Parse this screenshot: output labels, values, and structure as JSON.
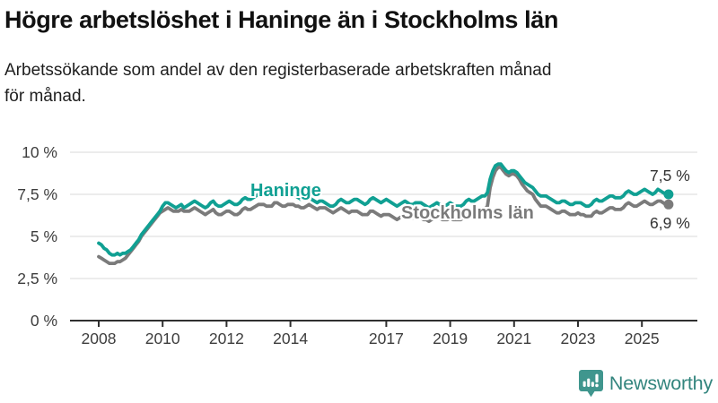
{
  "header": {
    "title": "Högre arbetslöshet i Haninge än i Stockholms län",
    "subtitle_lines": [
      "Arbetssökande som andel av den registerbaserade arbetskraften månad",
      "för månad."
    ]
  },
  "branding": {
    "name": "Newsworthy",
    "icon": "bar-chart-pin-icon",
    "text_color": "#33857E",
    "icon_color": "#40968E"
  },
  "chart_data": {
    "type": "line",
    "title": "Högre arbetslöshet i Haninge än i Stockholms län",
    "subtitle": "Arbetssökande som andel av den registerbaserade arbetskraften månad för månad.",
    "x_start_year": 2008,
    "x_start_month": 1,
    "x_step_months": 1,
    "ylim": [
      0,
      10
    ],
    "grid": true,
    "legend_position": "inline-on-line",
    "yticks": [
      {
        "value": 0,
        "label": "0 %"
      },
      {
        "value": 2.5,
        "label": "2,5 %"
      },
      {
        "value": 5,
        "label": "5 %"
      },
      {
        "value": 7.5,
        "label": "7,5 %"
      },
      {
        "value": 10,
        "label": "10 %"
      }
    ],
    "xticks": [
      {
        "value": 2008,
        "label": "2008"
      },
      {
        "value": 2010,
        "label": "2010"
      },
      {
        "value": 2012,
        "label": "2012"
      },
      {
        "value": 2014,
        "label": "2014"
      },
      {
        "value": 2017,
        "label": "2017"
      },
      {
        "value": 2019,
        "label": "2019"
      },
      {
        "value": 2021,
        "label": "2021"
      },
      {
        "value": 2023,
        "label": "2023"
      },
      {
        "value": 2025,
        "label": "2025"
      }
    ],
    "series": [
      {
        "key": "haninge",
        "name": "Haninge",
        "color": "#10A093",
        "end_label": "7,5 %",
        "last_value": 7.5,
        "values": [
          4.6,
          4.5,
          4.3,
          4.2,
          4.0,
          3.9,
          3.9,
          4.0,
          3.9,
          4.0,
          4.0,
          4.1,
          4.2,
          4.4,
          4.6,
          4.8,
          5.1,
          5.3,
          5.5,
          5.7,
          5.9,
          6.1,
          6.3,
          6.5,
          6.8,
          7.0,
          7.0,
          6.9,
          6.8,
          6.7,
          6.8,
          6.9,
          6.7,
          6.8,
          6.9,
          7.0,
          7.1,
          7.0,
          6.9,
          6.8,
          6.7,
          6.8,
          7.0,
          7.1,
          6.9,
          6.8,
          6.8,
          6.9,
          7.0,
          7.1,
          7.0,
          6.9,
          6.9,
          7.0,
          7.2,
          7.3,
          7.2,
          7.2,
          7.3,
          7.4,
          7.5,
          7.6,
          7.6,
          7.5,
          7.4,
          7.5,
          7.6,
          7.6,
          7.5,
          7.4,
          7.4,
          7.5,
          7.5,
          7.5,
          7.4,
          7.3,
          7.2,
          7.2,
          7.3,
          7.3,
          7.2,
          7.1,
          7.0,
          7.1,
          7.1,
          7.0,
          6.9,
          6.8,
          6.8,
          6.9,
          7.1,
          7.2,
          7.1,
          7.0,
          7.0,
          7.1,
          7.2,
          7.2,
          7.1,
          7.0,
          6.9,
          7.0,
          7.2,
          7.3,
          7.2,
          7.1,
          7.0,
          7.1,
          7.2,
          7.1,
          7.0,
          6.9,
          6.8,
          6.9,
          7.0,
          7.1,
          7.0,
          6.9,
          6.9,
          7.0,
          7.0,
          7.0,
          6.9,
          6.8,
          6.7,
          6.8,
          6.9,
          7.0,
          6.9,
          6.8,
          6.8,
          6.9,
          7.0,
          6.9,
          6.8,
          6.8,
          6.8,
          6.9,
          7.1,
          7.2,
          7.1,
          7.1,
          7.2,
          7.3,
          7.4,
          7.4,
          7.6,
          8.4,
          8.9,
          9.2,
          9.3,
          9.3,
          9.1,
          8.9,
          8.8,
          8.9,
          8.9,
          8.8,
          8.6,
          8.4,
          8.2,
          8.1,
          8.0,
          7.9,
          7.7,
          7.5,
          7.4,
          7.4,
          7.4,
          7.3,
          7.2,
          7.1,
          7.0,
          7.0,
          7.1,
          7.1,
          7.0,
          6.9,
          6.9,
          7.0,
          7.0,
          7.0,
          6.9,
          6.8,
          6.8,
          6.9,
          7.1,
          7.2,
          7.1,
          7.1,
          7.2,
          7.3,
          7.4,
          7.4,
          7.3,
          7.3,
          7.3,
          7.4,
          7.6,
          7.7,
          7.6,
          7.5,
          7.5,
          7.6,
          7.7,
          7.8,
          7.7,
          7.6,
          7.5,
          7.6,
          7.8,
          7.7,
          7.6,
          7.5,
          7.5
        ]
      },
      {
        "key": "stockholms-lan",
        "name": "Stockholms län",
        "color": "#7B7B7B",
        "end_label": "6,9 %",
        "last_value": 6.9,
        "values": [
          3.8,
          3.7,
          3.6,
          3.5,
          3.4,
          3.4,
          3.4,
          3.5,
          3.5,
          3.6,
          3.7,
          3.9,
          4.1,
          4.3,
          4.5,
          4.7,
          5.0,
          5.2,
          5.4,
          5.6,
          5.8,
          6.0,
          6.2,
          6.4,
          6.5,
          6.6,
          6.7,
          6.6,
          6.5,
          6.5,
          6.5,
          6.6,
          6.5,
          6.5,
          6.5,
          6.6,
          6.7,
          6.6,
          6.5,
          6.4,
          6.3,
          6.4,
          6.5,
          6.6,
          6.4,
          6.3,
          6.3,
          6.4,
          6.5,
          6.5,
          6.4,
          6.3,
          6.3,
          6.4,
          6.6,
          6.7,
          6.6,
          6.6,
          6.7,
          6.8,
          6.9,
          6.9,
          6.9,
          6.8,
          6.8,
          6.8,
          7.0,
          7.0,
          6.9,
          6.8,
          6.8,
          6.9,
          6.9,
          6.9,
          6.8,
          6.8,
          6.7,
          6.7,
          6.8,
          6.9,
          6.8,
          6.7,
          6.6,
          6.7,
          6.7,
          6.7,
          6.6,
          6.5,
          6.4,
          6.5,
          6.6,
          6.7,
          6.6,
          6.5,
          6.4,
          6.5,
          6.5,
          6.5,
          6.4,
          6.3,
          6.3,
          6.3,
          6.5,
          6.5,
          6.4,
          6.3,
          6.2,
          6.3,
          6.3,
          6.3,
          6.2,
          6.1,
          6.0,
          6.1,
          6.2,
          6.3,
          6.2,
          6.1,
          6.1,
          6.1,
          6.2,
          6.1,
          6.0,
          6.0,
          5.9,
          6.0,
          6.1,
          6.2,
          6.1,
          6.0,
          6.0,
          6.0,
          6.1,
          6.0,
          6.0,
          6.0,
          6.0,
          6.1,
          6.3,
          6.4,
          6.3,
          6.3,
          6.4,
          6.5,
          6.6,
          6.6,
          6.8,
          7.9,
          8.5,
          8.9,
          9.1,
          9.1,
          8.9,
          8.7,
          8.6,
          8.7,
          8.7,
          8.6,
          8.4,
          8.1,
          7.9,
          7.7,
          7.6,
          7.5,
          7.2,
          7.0,
          6.8,
          6.8,
          6.8,
          6.7,
          6.6,
          6.5,
          6.4,
          6.4,
          6.5,
          6.5,
          6.4,
          6.3,
          6.3,
          6.3,
          6.4,
          6.3,
          6.3,
          6.2,
          6.2,
          6.2,
          6.4,
          6.5,
          6.4,
          6.4,
          6.5,
          6.6,
          6.7,
          6.7,
          6.6,
          6.6,
          6.6,
          6.7,
          6.9,
          7.0,
          6.9,
          6.8,
          6.8,
          6.9,
          7.0,
          7.1,
          7.0,
          6.9,
          6.9,
          7.0,
          7.1,
          7.1,
          7.0,
          6.9,
          6.9
        ]
      }
    ],
    "style": {
      "grid_color": "#DADADA",
      "axis_color": "#2F2F2F",
      "tick_text_color": "#3D3D3D"
    }
  }
}
